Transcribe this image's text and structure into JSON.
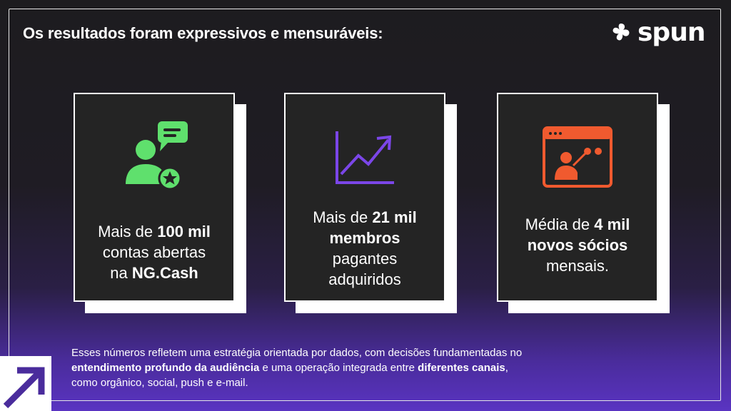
{
  "heading": "Os resultados foram expressivos e mensuráveis:",
  "logo": {
    "text": "spun",
    "icon": "leaf-mark-icon"
  },
  "colors": {
    "green": "#5fe06d",
    "purple": "#7b46e8",
    "orange": "#f05a2f",
    "card_bg": "#242424"
  },
  "cards": [
    {
      "icon": "user-chat-star-icon",
      "line1_pre": "Mais de ",
      "line1_bold": "100 mil",
      "line2": "contas abertas",
      "line3_pre": "na ",
      "line3_bold": "NG.Cash"
    },
    {
      "icon": "trending-up-chart-icon",
      "line1_pre": "Mais de ",
      "line1_bold": "21 mil",
      "line2_bold": "membros",
      "line3": "pagantes",
      "line4": "adquiridos"
    },
    {
      "icon": "browser-presenter-icon",
      "line1_pre": "Média de ",
      "line1_bold": "4 mil",
      "line2_bold": "novos sócios",
      "line3": "mensais."
    }
  ],
  "footer": {
    "part1": "Esses números refletem uma estratégia orientada por dados, com decisões fundamentadas no",
    "bold1": "entendimento profundo da audiência",
    "part2": " e uma operação integrada entre ",
    "bold2": "diferentes canais",
    "part3": ",",
    "line3": "como orgânico, social, push e e-mail."
  }
}
